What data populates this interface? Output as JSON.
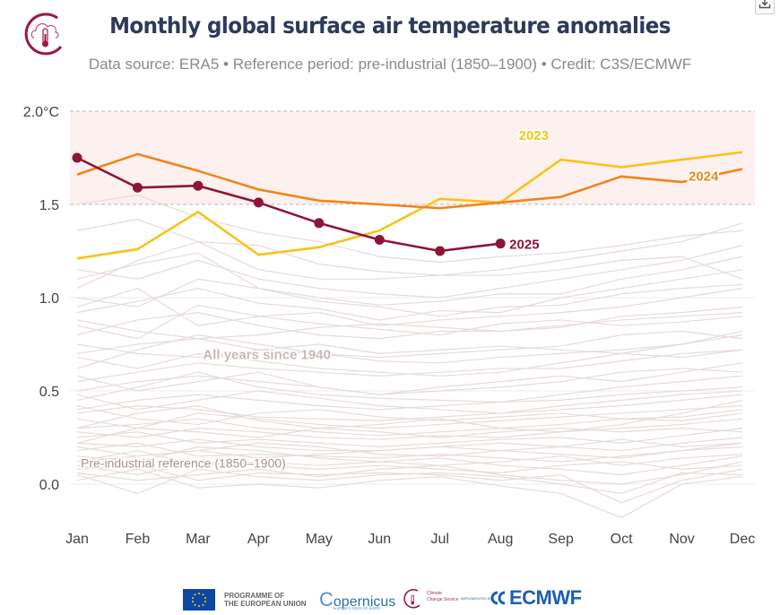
{
  "header": {
    "title": "Monthly global surface air temperature anomalies",
    "subtitle": "Data source: ERA5 • Reference period: pre-industrial (1850–1900) • Credit: C3S/ECMWF",
    "logo_icon": "climate-thermometer-cloud-icon",
    "download_icon": "download-icon"
  },
  "footer": {
    "eu_text_line1": "PROGRAMME OF",
    "eu_text_line2": "THE EUROPEAN UNION",
    "copernicus": "opernicus",
    "copernicus_c": "C",
    "copernicus_sub": "Europe's eyes on Earth",
    "c3s_line1": "Climate",
    "c3s_line2": "Change Service",
    "implemented_by": "IMPLEMENTED BY",
    "ecmwf": "ECMWF"
  },
  "colors": {
    "y2025": "#8c1538",
    "y2024": "#f28518",
    "y2023": "#f7c31a",
    "background_years": "#e6dcd9",
    "band_fill": "#fdf1ef",
    "axis_text": "#444444",
    "annotation_text": "#c9b9b7"
  },
  "chart_data": {
    "type": "line",
    "title": "Monthly global surface air temperature anomalies",
    "subtitle": "Data source: ERA5 • Reference period: pre-industrial (1850–1900) • Credit: C3S/ECMWF",
    "xlabel": "",
    "ylabel": "",
    "categories": [
      "Jan",
      "Feb",
      "Mar",
      "Apr",
      "May",
      "Jun",
      "Jul",
      "Aug",
      "Sep",
      "Oct",
      "Nov",
      "Dec"
    ],
    "ylim": [
      -0.2,
      2.0
    ],
    "yticks": [
      {
        "value": 2.0,
        "label": "2.0°C"
      },
      {
        "value": 1.5,
        "label": "1.5"
      },
      {
        "value": 1.0,
        "label": "1.0"
      },
      {
        "value": 0.5,
        "label": "0.5"
      },
      {
        "value": 0.0,
        "label": "0.0"
      }
    ],
    "band": {
      "from": 1.5,
      "to": 2.0
    },
    "series": [
      {
        "name": "2023",
        "label": "2023",
        "values": [
          1.21,
          1.26,
          1.46,
          1.23,
          1.27,
          1.36,
          1.53,
          1.51,
          1.74,
          1.7,
          1.74,
          1.78
        ],
        "markers": false
      },
      {
        "name": "2024",
        "label": "2024",
        "values": [
          1.66,
          1.77,
          1.68,
          1.58,
          1.52,
          1.5,
          1.48,
          1.51,
          1.54,
          1.65,
          1.62,
          1.69
        ],
        "markers": false
      },
      {
        "name": "2025",
        "label": "2025",
        "values": [
          1.75,
          1.59,
          1.6,
          1.51,
          1.4,
          1.31,
          1.25,
          1.29
        ],
        "markers": true
      }
    ],
    "background_series_label": "All years since 1940",
    "background_series_range": [
      1940,
      2022
    ],
    "background_series": [
      [
        1.1,
        1.18,
        1.24,
        1.05,
        1.0,
        0.96,
        0.98,
        1.02,
        1.02,
        1.1,
        1.15,
        1.22
      ],
      [
        1.05,
        1.2,
        1.3,
        1.15,
        1.1,
        1.1,
        1.12,
        1.12,
        1.15,
        1.2,
        1.22,
        1.1
      ],
      [
        1.36,
        1.42,
        1.3,
        1.28,
        1.18,
        1.14,
        1.12,
        1.15,
        1.2,
        1.25,
        1.3,
        1.4
      ],
      [
        1.5,
        1.55,
        1.43,
        1.35,
        1.3,
        1.22,
        1.19,
        1.22,
        1.24,
        1.28,
        1.33,
        1.36
      ],
      [
        1.0,
        0.95,
        1.1,
        1.05,
        0.98,
        0.95,
        0.9,
        0.95,
        0.96,
        1.02,
        1.05,
        1.07
      ],
      [
        0.92,
        0.98,
        1.05,
        0.97,
        0.94,
        0.88,
        0.93,
        0.92,
        1.0,
        1.05,
        1.1,
        1.15
      ],
      [
        0.8,
        0.88,
        0.92,
        0.85,
        0.8,
        0.78,
        0.82,
        0.82,
        0.84,
        0.9,
        0.92,
        0.95
      ],
      [
        0.85,
        0.78,
        0.96,
        0.9,
        0.86,
        0.83,
        0.8,
        0.86,
        0.88,
        0.85,
        0.87,
        0.9
      ],
      [
        0.7,
        0.75,
        0.78,
        0.72,
        0.7,
        0.68,
        0.7,
        0.72,
        0.74,
        0.8,
        0.82,
        0.78
      ],
      [
        0.62,
        0.72,
        0.8,
        0.75,
        0.7,
        0.66,
        0.65,
        0.68,
        0.7,
        0.72,
        0.75,
        0.82
      ],
      [
        0.55,
        0.6,
        0.65,
        0.62,
        0.6,
        0.58,
        0.6,
        0.62,
        0.62,
        0.66,
        0.7,
        0.72
      ],
      [
        0.5,
        0.55,
        0.58,
        0.55,
        0.52,
        0.48,
        0.5,
        0.52,
        0.55,
        0.6,
        0.62,
        0.6
      ],
      [
        0.45,
        0.52,
        0.6,
        0.52,
        0.48,
        0.46,
        0.45,
        0.44,
        0.48,
        0.52,
        0.55,
        0.58
      ],
      [
        0.4,
        0.45,
        0.48,
        0.45,
        0.42,
        0.4,
        0.42,
        0.44,
        0.45,
        0.48,
        0.5,
        0.52
      ],
      [
        0.38,
        0.42,
        0.4,
        0.36,
        0.35,
        0.34,
        0.36,
        0.38,
        0.4,
        0.42,
        0.45,
        0.48
      ],
      [
        0.35,
        0.3,
        0.38,
        0.35,
        0.32,
        0.3,
        0.32,
        0.34,
        0.36,
        0.38,
        0.4,
        0.42
      ],
      [
        0.3,
        0.32,
        0.35,
        0.3,
        0.28,
        0.26,
        0.28,
        0.3,
        0.32,
        0.35,
        0.34,
        0.38
      ],
      [
        0.28,
        0.25,
        0.3,
        0.28,
        0.25,
        0.24,
        0.26,
        0.25,
        0.28,
        0.3,
        0.32,
        0.35
      ],
      [
        0.25,
        0.28,
        0.22,
        0.24,
        0.22,
        0.2,
        0.22,
        0.24,
        0.25,
        0.22,
        0.26,
        0.3
      ],
      [
        0.22,
        0.2,
        0.24,
        0.2,
        0.18,
        0.18,
        0.2,
        0.22,
        0.2,
        0.18,
        0.22,
        0.25
      ],
      [
        0.2,
        0.15,
        0.18,
        0.22,
        0.2,
        0.16,
        0.15,
        0.18,
        0.2,
        0.24,
        0.2,
        0.22
      ],
      [
        0.18,
        0.22,
        0.15,
        0.16,
        0.15,
        0.14,
        0.16,
        0.14,
        0.12,
        0.15,
        0.18,
        0.2
      ],
      [
        0.15,
        0.12,
        0.2,
        0.18,
        0.14,
        0.12,
        0.1,
        0.12,
        0.15,
        0.1,
        0.14,
        0.16
      ],
      [
        0.12,
        0.18,
        0.1,
        0.12,
        0.1,
        0.12,
        0.14,
        0.1,
        0.08,
        0.05,
        0.1,
        0.15
      ],
      [
        0.1,
        0.05,
        0.12,
        0.1,
        0.08,
        0.1,
        0.08,
        0.06,
        0.1,
        0.12,
        0.08,
        0.1
      ],
      [
        0.08,
        0.1,
        0.02,
        0.06,
        0.05,
        0.06,
        0.05,
        0.02,
        0.05,
        -0.1,
        0.02,
        0.08
      ],
      [
        0.05,
        -0.05,
        0.08,
        0.04,
        0.02,
        0.05,
        0.06,
        0.04,
        0.0,
        -0.05,
        0.06,
        0.05
      ],
      [
        0.02,
        0.08,
        -0.02,
        0.0,
        -0.02,
        0.02,
        0.04,
        -0.01,
        -0.05,
        -0.18,
        0.0,
        0.04
      ],
      [
        0.06,
        0.02,
        0.05,
        0.08,
        0.04,
        0.08,
        0.1,
        0.05,
        0.02,
        0.0,
        0.05,
        0.12
      ],
      [
        0.3,
        0.38,
        0.42,
        0.34,
        0.3,
        0.32,
        0.35,
        0.3,
        0.28,
        0.32,
        0.38,
        0.45
      ],
      [
        0.58,
        0.5,
        0.55,
        0.6,
        0.52,
        0.48,
        0.52,
        0.55,
        0.58,
        0.55,
        0.6,
        0.65
      ],
      [
        0.68,
        0.62,
        0.7,
        0.66,
        0.62,
        0.6,
        0.58,
        0.6,
        0.65,
        0.7,
        0.68,
        0.72
      ],
      [
        0.95,
        1.05,
        0.85,
        0.9,
        0.92,
        0.85,
        0.88,
        0.9,
        0.92,
        0.95,
        1.0,
        1.05
      ],
      [
        1.15,
        1.1,
        1.2,
        1.1,
        1.05,
        1.02,
        1.0,
        1.05,
        1.1,
        1.15,
        1.2,
        1.28
      ],
      [
        0.48,
        0.4,
        0.45,
        0.5,
        0.46,
        0.42,
        0.4,
        0.38,
        0.42,
        0.45,
        0.48,
        0.5
      ],
      [
        0.22,
        0.3,
        0.28,
        0.25,
        0.3,
        0.28,
        0.25,
        0.28,
        0.3,
        0.28,
        0.3,
        0.28
      ],
      [
        0.12,
        0.15,
        0.18,
        0.14,
        0.16,
        0.18,
        0.2,
        0.18,
        0.16,
        0.14,
        0.18,
        0.22
      ],
      [
        0.42,
        0.35,
        0.32,
        0.38,
        0.4,
        0.36,
        0.34,
        0.36,
        0.38,
        0.35,
        0.36,
        0.4
      ],
      [
        0.75,
        0.7,
        0.68,
        0.72,
        0.75,
        0.7,
        0.72,
        0.74,
        0.72,
        0.7,
        0.75,
        0.8
      ],
      [
        0.88,
        0.82,
        0.78,
        0.8,
        0.84,
        0.86,
        0.84,
        0.82,
        0.85,
        0.88,
        0.9,
        0.92
      ]
    ],
    "annotations": [
      {
        "text": "All years since 1940",
        "x": "Apr",
        "y": 0.67
      },
      {
        "text": "Pre-industrial reference (1850–1900)",
        "x": "Jan",
        "y": 0.06
      }
    ],
    "grid": false,
    "legend": "inline-labels"
  }
}
